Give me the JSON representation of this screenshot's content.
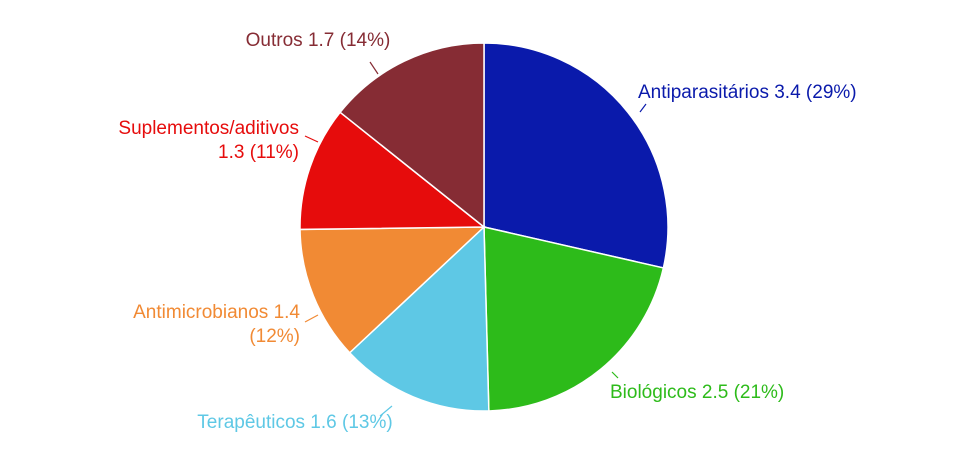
{
  "chart_data": {
    "type": "pie",
    "title": "",
    "start_angle_deg": 0,
    "direction": "clockwise",
    "legend": "none",
    "slices": [
      {
        "label": "Antiparasitários",
        "value": 3.4,
        "percent": "29%",
        "value_text": "3.4",
        "color": "#0a1aab"
      },
      {
        "label": "Biológicos",
        "value": 2.5,
        "percent": "21%",
        "value_text": "2.5",
        "color": "#2dbb1a"
      },
      {
        "label": "Terapêuticos",
        "value": 1.6,
        "percent": "13%",
        "value_text": "1.6",
        "color": "#5ec8e5"
      },
      {
        "label": "Antimicrobianos",
        "value": 1.4,
        "percent": "12%",
        "value_text": "1.4",
        "color": "#f18a34"
      },
      {
        "label": "Suplementos/aditivos",
        "value": 1.3,
        "percent": "11%",
        "value_text": "1.3",
        "color": "#e60c0c"
      },
      {
        "label": "Outros",
        "value": 1.7,
        "percent": "14%",
        "value_text": "1.7",
        "color": "#862c34"
      }
    ]
  }
}
